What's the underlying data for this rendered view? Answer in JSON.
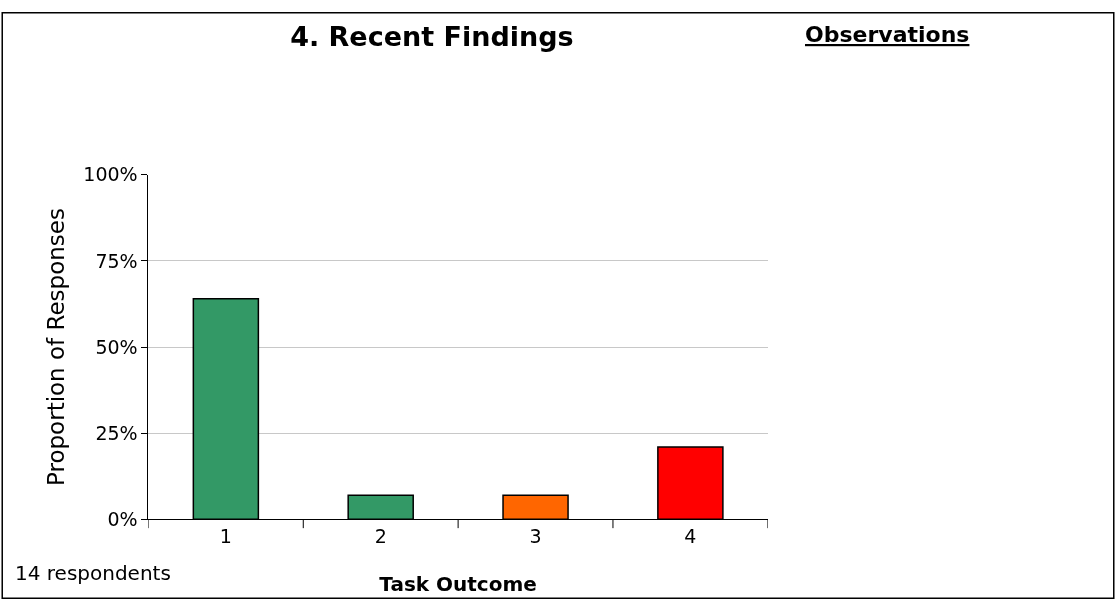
{
  "chart_data": {
    "type": "bar",
    "title": "4. Recent Findings",
    "xlabel": "Task Outcome",
    "ylabel": "Proportion of Responses",
    "categories": [
      "1",
      "2",
      "3",
      "4"
    ],
    "values": [
      64,
      7,
      7,
      21
    ],
    "colors": [
      "#339966",
      "#339966",
      "#ff6600",
      "#ff0000"
    ],
    "ylim": [
      0,
      100
    ],
    "yticks": [
      {
        "value": 0,
        "label": "0%"
      },
      {
        "value": 25,
        "label": "25%"
      },
      {
        "value": 50,
        "label": "50%"
      },
      {
        "value": 75,
        "label": "75%"
      },
      {
        "value": 100,
        "label": "100%"
      }
    ],
    "grid": "y",
    "legend": false,
    "annotations": [
      "Observations",
      "14 respondents"
    ]
  }
}
